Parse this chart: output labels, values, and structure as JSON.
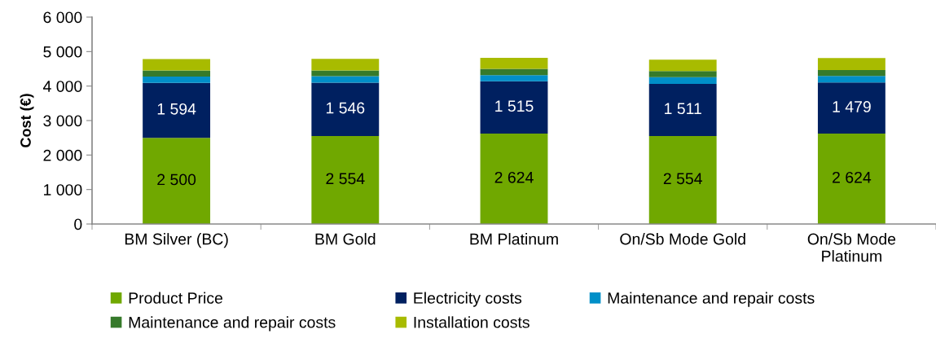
{
  "chart_data": {
    "type": "bar",
    "stacked": true,
    "ylabel": "Cost (€)",
    "categories": [
      "BM Silver (BC)",
      "BM Gold",
      "BM Platinum",
      "On/Sb Mode Gold",
      "On/Sb Mode\nPlatinum"
    ],
    "series": [
      {
        "name": "Product Price",
        "color": "#70a800",
        "values": [
          2500,
          2554,
          2624,
          2554,
          2624
        ],
        "value_labels": [
          "2 500",
          "2 554",
          "2 624",
          "2 554",
          "2 624"
        ]
      },
      {
        "name": "Electricity costs",
        "color": "#002060",
        "values": [
          1594,
          1546,
          1515,
          1511,
          1479
        ],
        "value_labels": [
          "1 594",
          "1 546",
          "1 515",
          "1 511",
          "1 479"
        ]
      },
      {
        "name": "Maintenance and repair costs",
        "color": "#008fc8",
        "values": [
          180,
          190,
          180,
          190,
          190
        ]
      },
      {
        "name": "Maintenance and repair costs",
        "color": "#367a2b",
        "values": [
          180,
          160,
          180,
          180,
          170
        ]
      },
      {
        "name": "Installation costs",
        "color": "#a8bb00",
        "values": [
          330,
          340,
          320,
          330,
          350
        ]
      }
    ],
    "ylim": [
      0,
      6000
    ],
    "yticks": [
      0,
      {
        "value": 1000,
        "label": "1 000"
      },
      {
        "value": 2000,
        "label": "2 000"
      },
      {
        "value": 3000,
        "label": "3 000"
      },
      {
        "value": 4000,
        "label": "4 000"
      },
      {
        "value": 5000,
        "label": "5 000"
      },
      {
        "value": 6000,
        "label": "6 000"
      }
    ],
    "grid": false,
    "legend": "bottom"
  }
}
